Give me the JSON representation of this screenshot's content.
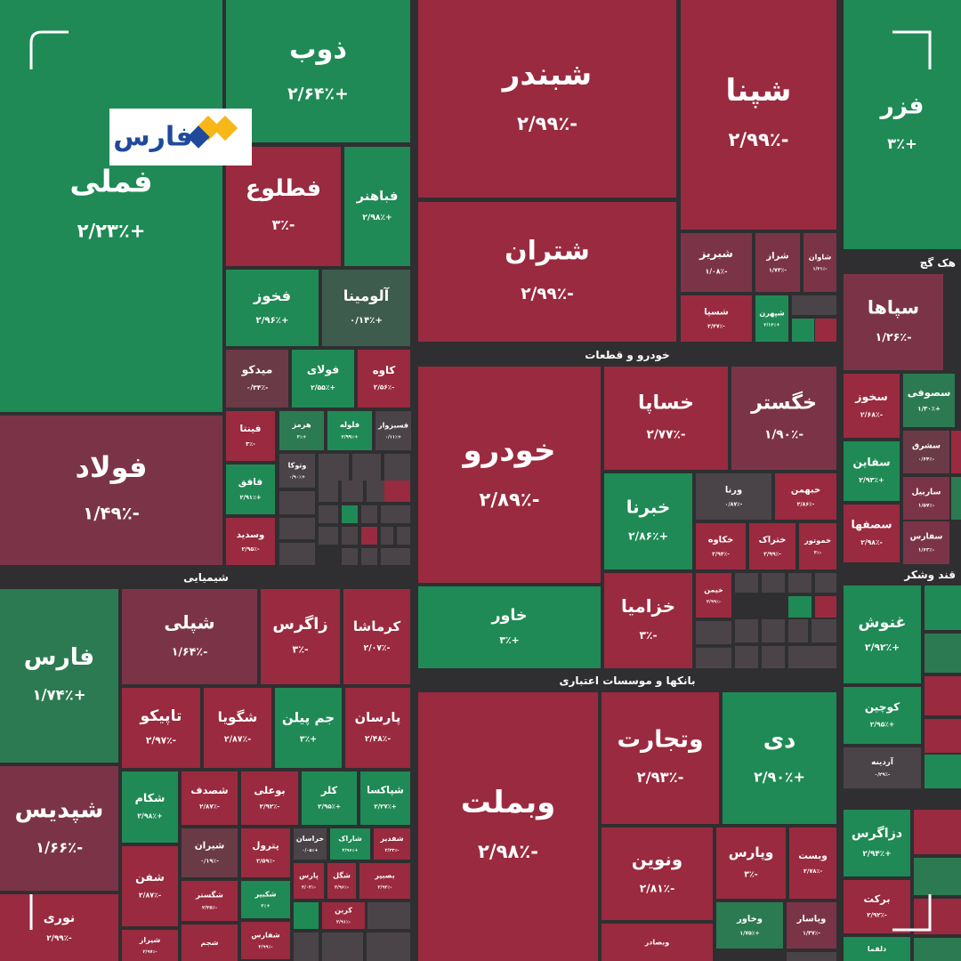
{
  "logo": "فارس",
  "sectors": [
    "شیمیایی",
    "خودرو و قطعات",
    "بانکها و موسسات اعتباری",
    "هک گچ",
    "قند وشکر"
  ],
  "tiles": [
    {
      "name": "فملی",
      "change": "+۲/۲۳٪",
      "color": "#1f8a55"
    },
    {
      "name": "فولاد",
      "change": "-۱/۴۹٪",
      "color": "#7b3447"
    },
    {
      "name": "فارس",
      "change": "+۱/۷۴٪",
      "color": "#2c7a51"
    },
    {
      "name": "شپدیس",
      "change": "-۱/۶۶٪",
      "color": "#7b3447"
    },
    {
      "name": "نوری",
      "change": "-۲/۹۹٪",
      "color": "#9a2a3f"
    },
    {
      "name": "ذوب",
      "change": "+۲/۶۴٪",
      "color": "#1f8a55"
    },
    {
      "name": "فطلوع",
      "change": "-۳٪",
      "color": "#9a2a3f"
    },
    {
      "name": "فباهنر",
      "change": "+۲/۹۸٪",
      "color": "#1f8a55"
    },
    {
      "name": "فخوز",
      "change": "+۲/۹۶٪",
      "color": "#1f8a55"
    },
    {
      "name": "آلومینا",
      "change": "+۰/۱۴٪",
      "color": "#3e5c4d"
    },
    {
      "name": "میدکو",
      "change": "-۰/۳۴٪",
      "color": "#6a3a47"
    },
    {
      "name": "فولای",
      "change": "+۲/۵۵٪",
      "color": "#1f8a55"
    },
    {
      "name": "کاوه",
      "change": "-۲/۵۶٪",
      "color": "#9a2a3f"
    },
    {
      "name": "فینتا",
      "change": "-۳٪",
      "color": "#9a2a3f"
    },
    {
      "name": "هرمز",
      "change": "+۳٪",
      "color": "#2c7a51"
    },
    {
      "name": "فلوله",
      "change": "+۲/۹۹٪",
      "color": "#1f8a55"
    },
    {
      "name": "فسبزوار",
      "change": "+۰/۱۱٪",
      "color": "#4a4448"
    },
    {
      "name": "وتوکا",
      "change": "+۰/۹۰٪",
      "color": "#4a4448"
    },
    {
      "name": "فافق",
      "change": "+۲/۹۱٪",
      "color": "#1f8a55"
    },
    {
      "name": "وسدید",
      "change": "-۲/۹۵٪",
      "color": "#9a2a3f"
    },
    {
      "name": "شپلی",
      "change": "-۱/۶۴٪",
      "color": "#7b3447"
    },
    {
      "name": "زاگرس",
      "change": "-۳٪",
      "color": "#9a2a3f"
    },
    {
      "name": "کرماشا",
      "change": "-۲/۰۷٪",
      "color": "#9a2a3f"
    },
    {
      "name": "تاپیکو",
      "change": "-۲/۹۷٪",
      "color": "#9a2a3f"
    },
    {
      "name": "شگویا",
      "change": "-۲/۸۷٪",
      "color": "#9a2a3f"
    },
    {
      "name": "جم پیلن",
      "change": "+۳٪",
      "color": "#1f8a55"
    },
    {
      "name": "پارسان",
      "change": "-۲/۴۸٪",
      "color": "#9a2a3f"
    },
    {
      "name": "شکام",
      "change": "+۲/۹۸٪",
      "color": "#1f8a55"
    },
    {
      "name": "شصدف",
      "change": "-۲/۸۷٪",
      "color": "#9a2a3f"
    },
    {
      "name": "بوعلی",
      "change": "-۲/۹۲٪",
      "color": "#9a2a3f"
    },
    {
      "name": "کلر",
      "change": "+۲/۹۵٪",
      "color": "#1f8a55"
    },
    {
      "name": "شپاکسا",
      "change": "+۲/۲۷٪",
      "color": "#1f8a55"
    },
    {
      "name": "شفن",
      "change": "-۲/۸۷٪",
      "color": "#9a2a3f"
    },
    {
      "name": "شیراز",
      "change": "-۲/۹۷٪",
      "color": "#9a2a3f"
    },
    {
      "name": "شیران",
      "change": "-۰/۱۹٪",
      "color": "#6a3a47"
    },
    {
      "name": "شگستر",
      "change": "-۲/۳۵٪",
      "color": "#9a2a3f"
    },
    {
      "name": "شجم",
      "color": "#9a2a3f"
    },
    {
      "name": "پترول",
      "change": "-۲/۵۹٪",
      "color": "#9a2a3f"
    },
    {
      "name": "خراسان",
      "change": "+۰/۰۵٪",
      "color": "#4a4448"
    },
    {
      "name": "شاراک",
      "change": "+۲/۹۶٪",
      "color": "#1f8a55"
    },
    {
      "name": "شفدیر",
      "change": "-۲/۳۳٪",
      "color": "#9a2a3f"
    },
    {
      "name": "شکبیر",
      "change": "+۳٪",
      "color": "#1f8a55"
    },
    {
      "name": "شفارس",
      "change": "-۲/۹۹٪",
      "color": "#9a2a3f"
    },
    {
      "name": "پارس",
      "change": "-۲/۰۲٪",
      "color": "#9a2a3f"
    },
    {
      "name": "شگل",
      "change": "-۲/۹۶٪",
      "color": "#9a2a3f"
    },
    {
      "name": "بصبیر",
      "change": "-۲/۹۳٪",
      "color": "#9a2a3f"
    },
    {
      "name": "کربن",
      "change": "-۲/۹۱٪",
      "color": "#9a2a3f"
    },
    {
      "name": "شبندر",
      "change": "-۲/۹۹٪",
      "color": "#9a2a3f"
    },
    {
      "name": "شتران",
      "change": "-۲/۹۹٪",
      "color": "#9a2a3f"
    },
    {
      "name": "خودرو",
      "change": "-۲/۸۹٪",
      "color": "#9a2a3f"
    },
    {
      "name": "خاور",
      "change": "+۳٪",
      "color": "#1f8a55"
    },
    {
      "name": "وبملت",
      "change": "-۲/۹۸٪",
      "color": "#9a2a3f"
    },
    {
      "name": "شپنا",
      "change": "-۲/۹۹٪",
      "color": "#9a2a3f"
    },
    {
      "name": "شبریز",
      "change": "-۱/۰۸٪",
      "color": "#7b3447"
    },
    {
      "name": "شراز",
      "change": "-۱/۷۳٪",
      "color": "#7b3447"
    },
    {
      "name": "شاوان",
      "change": "-۱/۴۱٪",
      "color": "#7b3447"
    },
    {
      "name": "شسپا",
      "change": "-۲/۴۷٪",
      "color": "#9a2a3f"
    },
    {
      "name": "شپهرن",
      "change": "+۲/۱۴٪",
      "color": "#1f8a55"
    },
    {
      "name": "خساپا",
      "change": "-۲/۷۷٪",
      "color": "#9a2a3f"
    },
    {
      "name": "خگستر",
      "change": "-۱/۹۰٪",
      "color": "#7b3447"
    },
    {
      "name": "خبرنا",
      "change": "+۲/۸۶٪",
      "color": "#1f8a55"
    },
    {
      "name": "ورنا",
      "change": "-۰/۸۷٪",
      "color": "#4a4448"
    },
    {
      "name": "خبهمن",
      "change": "-۲/۸۶٪",
      "color": "#9a2a3f"
    },
    {
      "name": "خکاوه",
      "change": "-۲/۹۴٪",
      "color": "#9a2a3f"
    },
    {
      "name": "ختراک",
      "change": "-۲/۹۹٪",
      "color": "#9a2a3f"
    },
    {
      "name": "خموتور",
      "change": "-۳٪",
      "color": "#9a2a3f"
    },
    {
      "name": "خزامیا",
      "change": "-۳٪",
      "color": "#9a2a3f"
    },
    {
      "name": "خیمن",
      "change": "-۲/۹۹٪",
      "color": "#9a2a3f"
    },
    {
      "name": "وتجارت",
      "change": "-۲/۹۳٪",
      "color": "#9a2a3f"
    },
    {
      "name": "دی",
      "change": "+۲/۹۰٪",
      "color": "#1f8a55"
    },
    {
      "name": "ونوین",
      "change": "-۲/۸۱٪",
      "color": "#9a2a3f"
    },
    {
      "name": "وپارس",
      "change": "-۳٪",
      "color": "#9a2a3f"
    },
    {
      "name": "وبست",
      "change": "-۲/۷۸٪",
      "color": "#9a2a3f"
    },
    {
      "name": "وخاور",
      "change": "+۱/۷۵٪",
      "color": "#2c7a51"
    },
    {
      "name": "وپاسار",
      "change": "-۱/۳۷٪",
      "color": "#7b3447"
    },
    {
      "name": "وبصادر",
      "color": "#9a2a3f"
    },
    {
      "name": "فزر",
      "change": "+۳٪",
      "color": "#1f8a55"
    },
    {
      "name": "سپاها",
      "change": "-۱/۲۶٪",
      "color": "#7b3447"
    },
    {
      "name": "سخوز",
      "change": "-۲/۶۸٪",
      "color": "#9a2a3f"
    },
    {
      "name": "سصوفی",
      "change": "+۱/۳۰٪",
      "color": "#2c7a51"
    },
    {
      "name": "سشرق",
      "change": "-۰/۶۴٪",
      "color": "#6a3a47"
    },
    {
      "name": "سفاین",
      "change": "+۲/۹۳٪",
      "color": "#1f8a55"
    },
    {
      "name": "ساربیل",
      "change": "-۱/۵۷٪",
      "color": "#7b3447"
    },
    {
      "name": "سصفها",
      "change": "-۲/۹۸٪",
      "color": "#9a2a3f"
    },
    {
      "name": "سفارس",
      "change": "-۱/۶۲٪",
      "color": "#7b3447"
    },
    {
      "name": "غنوش",
      "change": "+۲/۹۲٪",
      "color": "#1f8a55"
    },
    {
      "name": "کوچین",
      "change": "+۲/۹۵٪",
      "color": "#1f8a55"
    },
    {
      "name": "آردینه",
      "change": "-۰/۲۹٪",
      "color": "#4a4448"
    },
    {
      "name": "دزاگرس",
      "change": "+۲/۹۴٪",
      "color": "#1f8a55"
    },
    {
      "name": "برکت",
      "change": "-۲/۹۲٪",
      "color": "#9a2a3f"
    },
    {
      "name": "دلقما",
      "color": "#1f8a55"
    }
  ]
}
